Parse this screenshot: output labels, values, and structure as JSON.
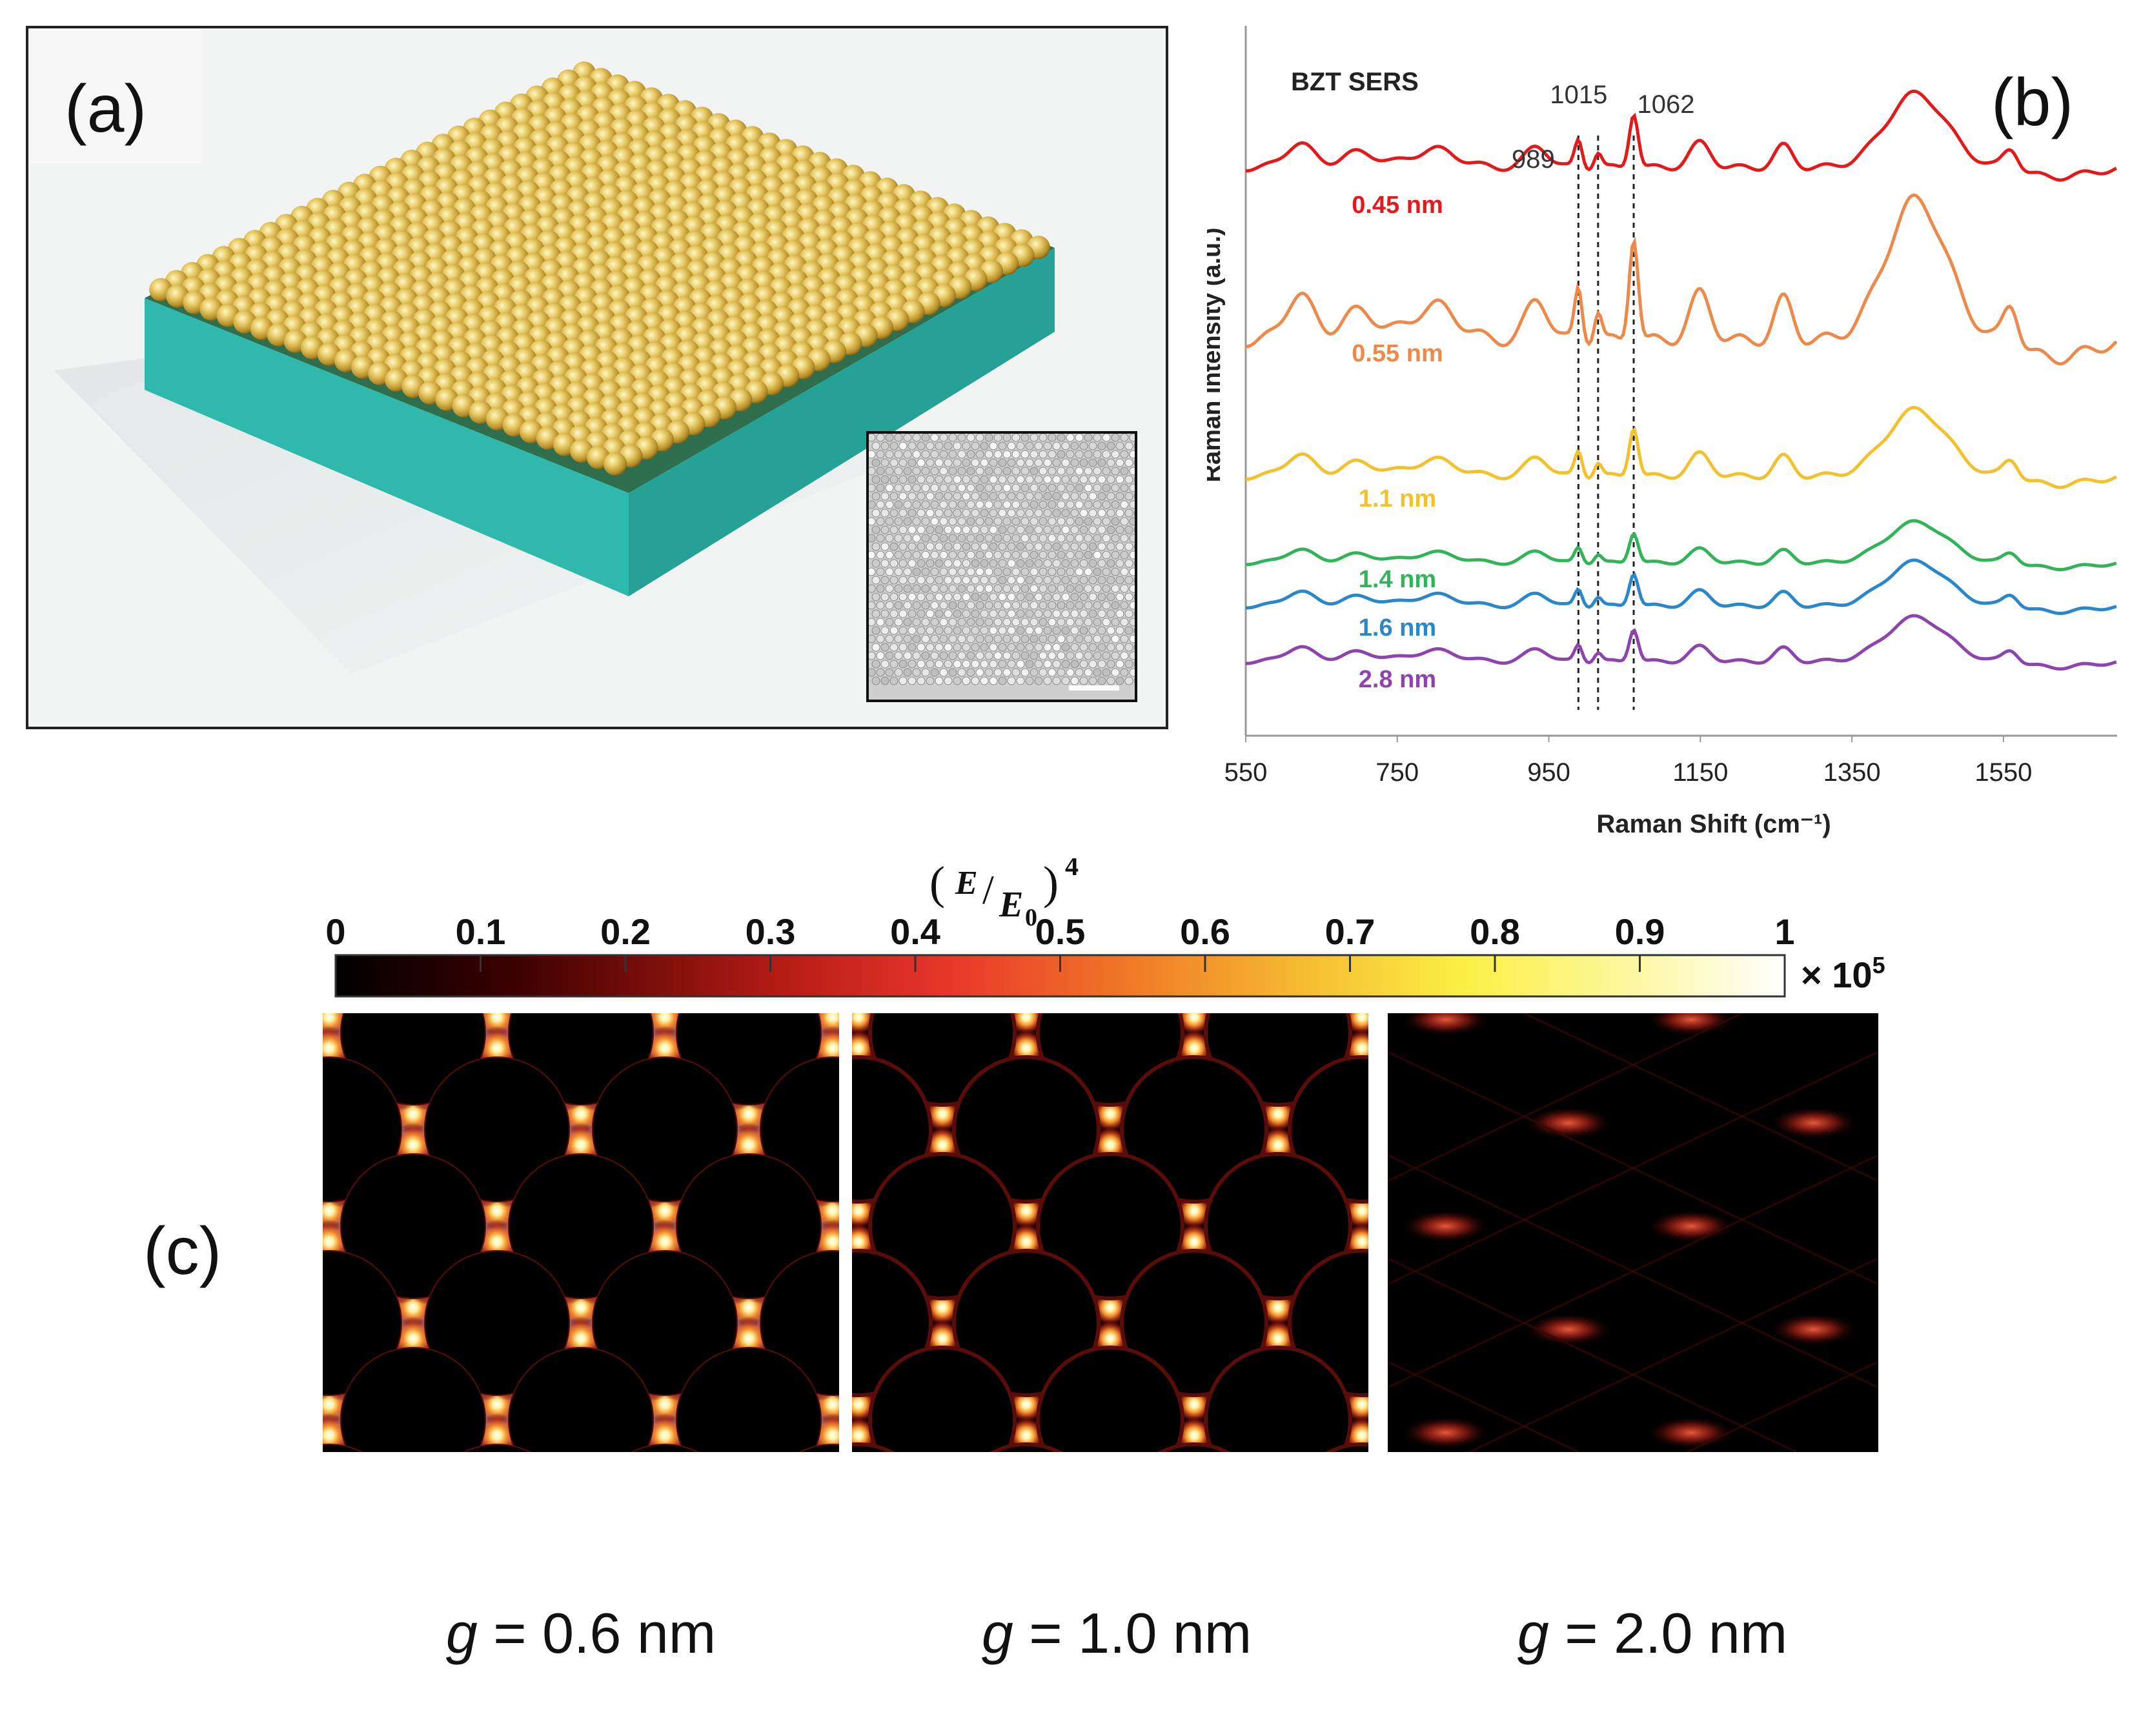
{
  "panel_labels": {
    "a": "(a)",
    "b": "(b)",
    "c": "(c)"
  },
  "panel_b": {
    "chart_data": {
      "type": "line",
      "title": "BZT SERS",
      "xlabel": "Raman Shift (cm⁻¹)",
      "ylabel": "Raman Intensity (a.u.)",
      "xlim": [
        550,
        1700
      ],
      "xticks": [
        "550",
        "750",
        "950",
        "1150",
        "1350",
        "1550"
      ],
      "peak_lines": [
        {
          "x": 989,
          "label": "989"
        },
        {
          "x": 1015,
          "label": "1015"
        },
        {
          "x": 1062,
          "label": "1062"
        }
      ],
      "series": [
        {
          "name": "0.45 nm",
          "color": "#e31a1c",
          "offset": 9.2,
          "amp": 1.0
        },
        {
          "name": "0.55 nm",
          "color": "#ec8a4b",
          "offset": 6.4,
          "amp": 1.9
        },
        {
          "name": "1.1 nm",
          "color": "#f2c12e",
          "offset": 4.2,
          "amp": 0.9
        },
        {
          "name": "1.4 nm",
          "color": "#33b35a",
          "offset": 2.8,
          "amp": 0.55
        },
        {
          "name": "1.6 nm",
          "color": "#2b87c9",
          "offset": 2.1,
          "amp": 0.6
        },
        {
          "name": "2.8 nm",
          "color": "#8e44ad",
          "offset": 1.2,
          "amp": 0.6
        }
      ]
    }
  },
  "panel_c": {
    "colorbar": {
      "title_num": "E",
      "title_den": "E",
      "title_sub": "0",
      "title_exp": "4",
      "ticks": [
        "0",
        "0.1",
        "0.2",
        "0.3",
        "0.4",
        "0.5",
        "0.6",
        "0.7",
        "0.8",
        "0.9",
        "1"
      ],
      "multiplier": "× 10",
      "multiplier_exp": "5"
    },
    "maps": [
      {
        "g_symbol": "g",
        "g_value": " = 0.6 nm"
      },
      {
        "g_symbol": "g",
        "g_value": " = 1.0 nm"
      },
      {
        "g_symbol": "g",
        "g_value": " = 2.0 nm"
      }
    ]
  }
}
